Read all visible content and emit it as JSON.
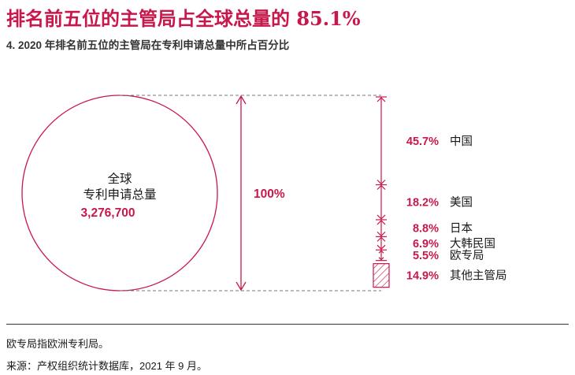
{
  "header": {
    "title": "排名前五位的主管局占全球总量的 85.1%",
    "subtitle": "4. 2020 年排名前五位的主管局在专利申请总量中所占百分比"
  },
  "circle": {
    "line1": "全球",
    "line2": "专利申请总量",
    "total": "3,276,700"
  },
  "total_label": "100%",
  "footer": {
    "note1": "欧专局指欧洲专利局。",
    "note2": "来源：产权组织统计数据库，2021 年 9 月。"
  },
  "colors": {
    "accent": "#c8174a",
    "text": "#1a1a1a",
    "line": "#555555"
  },
  "chart_data": {
    "type": "bar",
    "title": "排名前五位的主管局占全球总量的 85.1%",
    "categories": [
      "中国",
      "美国",
      "日本",
      "大韩民国",
      "欧专局",
      "其他主管局"
    ],
    "labels": [
      "45.7%",
      "18.2%",
      "8.8%",
      "6.9%",
      "5.5%",
      "14.9%"
    ],
    "values": [
      45.7,
      18.2,
      8.8,
      6.9,
      5.5,
      14.9
    ],
    "total": 100,
    "total_applications": 3276700
  }
}
